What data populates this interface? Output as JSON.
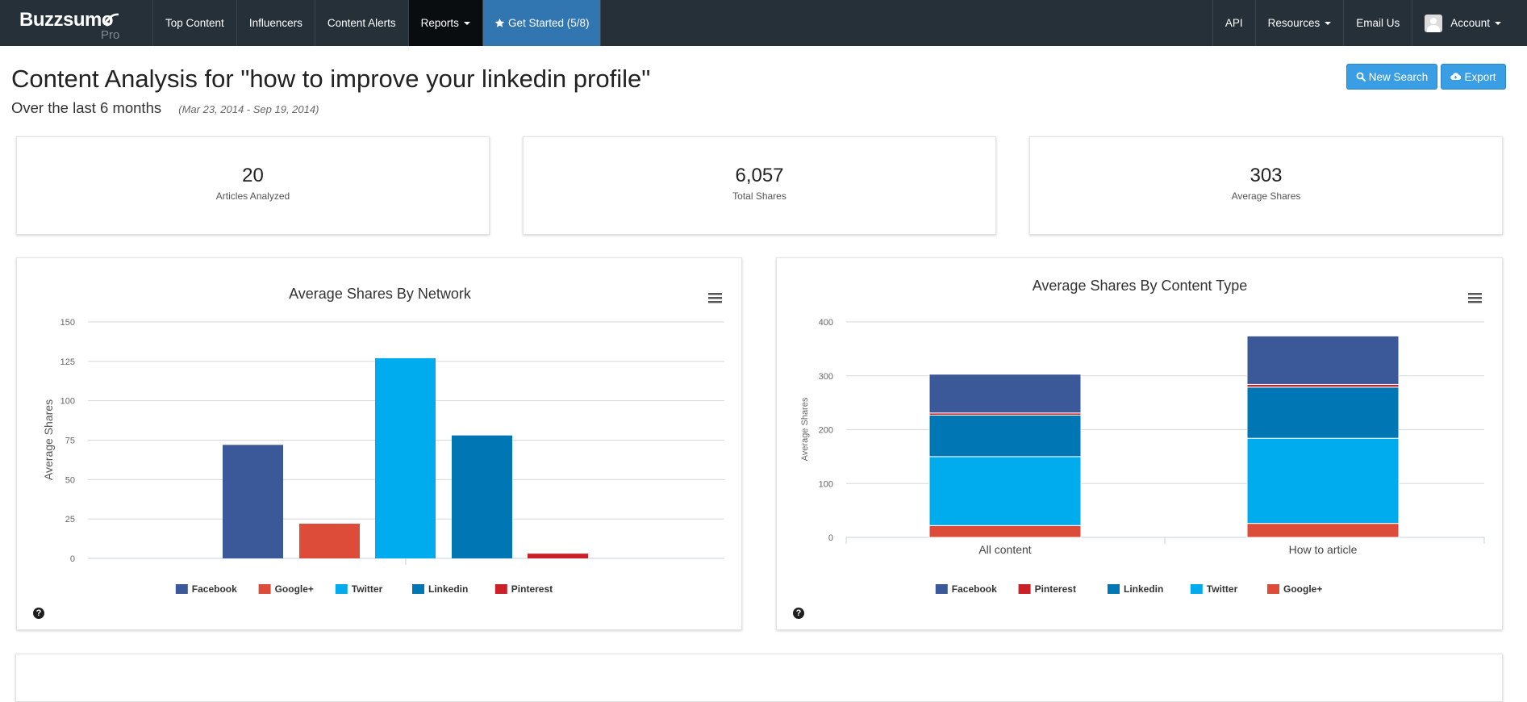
{
  "nav": {
    "brand_name": "Buzzsumo",
    "brand_tag": "Pro",
    "left_items": [
      "Top Content",
      "Influencers",
      "Content Alerts"
    ],
    "reports_label": "Reports",
    "get_started_label": "Get Started (5/8)",
    "right_items": [
      "API",
      "Resources",
      "Email Us",
      "Account"
    ]
  },
  "header": {
    "title": "Content Analysis for \"how to improve your linkedin profile\"",
    "period": "Over the last 6 months",
    "date_range": "(Mar 23, 2014 - Sep 19, 2014)",
    "new_search_label": "New Search",
    "export_label": "Export"
  },
  "stats": [
    {
      "value": "20",
      "label": "Articles Analyzed"
    },
    {
      "value": "6,057",
      "label": "Total Shares"
    },
    {
      "value": "303",
      "label": "Average Shares"
    }
  ],
  "colors": {
    "facebook": "#3b5998",
    "google": "#dd4b39",
    "twitter": "#00acee",
    "linkedin": "#0077b5",
    "pinterest": "#cb2027",
    "nav_bg": "#263038",
    "accent": "#3a9ee4"
  },
  "chart_data": [
    {
      "type": "bar",
      "title": "Average Shares By Network",
      "ylabel": "Average Shares",
      "xlabel": "",
      "ylim": [
        0,
        150
      ],
      "yticks": [
        0,
        25,
        50,
        75,
        100,
        125,
        150
      ],
      "categories": [
        "Facebook",
        "Google+",
        "Twitter",
        "Linkedin",
        "Pinterest"
      ],
      "values": [
        72,
        22,
        127,
        78,
        3
      ],
      "legend": [
        "Facebook",
        "Google+",
        "Twitter",
        "Linkedin",
        "Pinterest"
      ],
      "legend_position": "bottom",
      "grid": true
    },
    {
      "type": "bar",
      "stacked": true,
      "title": "Average Shares By Content Type",
      "ylabel": "Average Shares",
      "xlabel": "",
      "ylim": [
        0,
        400
      ],
      "yticks": [
        0,
        100,
        200,
        300,
        400
      ],
      "categories": [
        "All content",
        "How to article"
      ],
      "series": [
        {
          "name": "Google+",
          "values": [
            22,
            26
          ]
        },
        {
          "name": "Twitter",
          "values": [
            128,
            158
          ]
        },
        {
          "name": "Linkedin",
          "values": [
            77,
            95
          ]
        },
        {
          "name": "Pinterest",
          "values": [
            4,
            5
          ]
        },
        {
          "name": "Facebook",
          "values": [
            72,
            90
          ]
        }
      ],
      "legend": [
        "Facebook",
        "Pinterest",
        "Linkedin",
        "Twitter",
        "Google+"
      ],
      "legend_position": "bottom",
      "grid": true
    }
  ]
}
